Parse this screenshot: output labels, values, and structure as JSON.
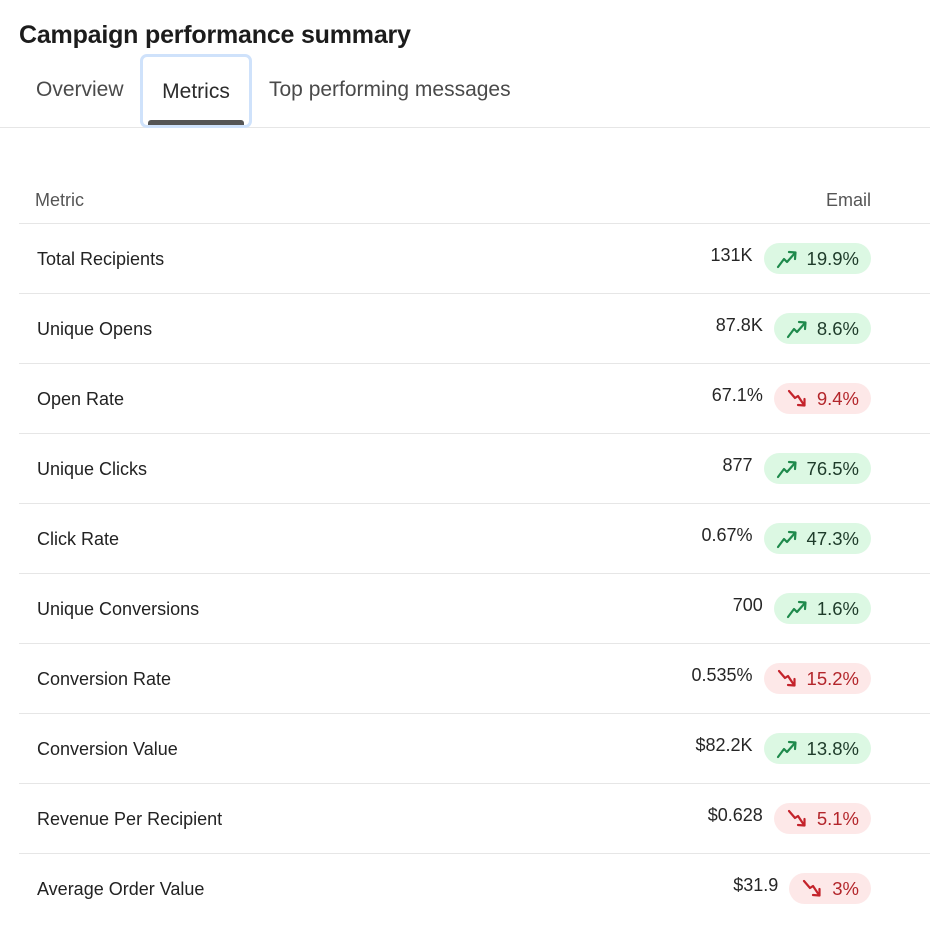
{
  "header": {
    "title": "Campaign performance summary"
  },
  "tabs": [
    {
      "label": "Overview",
      "active": false
    },
    {
      "label": "Metrics",
      "active": true
    },
    {
      "label": "Top performing messages",
      "active": false
    }
  ],
  "table": {
    "columns": [
      "Metric",
      "Email"
    ],
    "rows": [
      {
        "metric": "Total Recipients",
        "value": "131K",
        "change": "19.9%",
        "trend": "up"
      },
      {
        "metric": "Unique Opens",
        "value": "87.8K",
        "change": "8.6%",
        "trend": "up"
      },
      {
        "metric": "Open Rate",
        "value": "67.1%",
        "change": "9.4%",
        "trend": "down"
      },
      {
        "metric": "Unique Clicks",
        "value": "877",
        "change": "76.5%",
        "trend": "up"
      },
      {
        "metric": "Click Rate",
        "value": "0.67%",
        "change": "47.3%",
        "trend": "up"
      },
      {
        "metric": "Unique Conversions",
        "value": "700",
        "change": "1.6%",
        "trend": "up"
      },
      {
        "metric": "Conversion Rate",
        "value": "0.535%",
        "change": "15.2%",
        "trend": "down"
      },
      {
        "metric": "Conversion Value",
        "value": "$82.2K",
        "change": "13.8%",
        "trend": "up"
      },
      {
        "metric": "Revenue Per Recipient",
        "value": "$0.628",
        "change": "5.1%",
        "trend": "down"
      },
      {
        "metric": "Average Order Value",
        "value": "$31.9",
        "change": "3%",
        "trend": "down"
      }
    ]
  },
  "icons": {
    "up": "trending-up-icon",
    "down": "trending-down-icon"
  },
  "colors": {
    "up_bg": "#dcf8e3",
    "up_icon": "#1f8a4c",
    "down_bg": "#fde8e8",
    "down_icon": "#c4232b",
    "active_tab_outline": "#cfe2fb",
    "active_tab_underline": "#555555"
  }
}
